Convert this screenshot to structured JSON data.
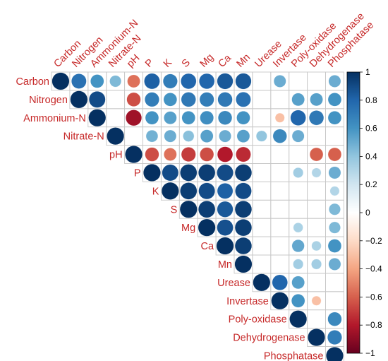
{
  "chart_data": {
    "type": "heatmap",
    "variables": [
      "Carbon",
      "Nitrogen",
      "Ammonium-N",
      "Nitrate-N",
      "pH",
      "P",
      "K",
      "S",
      "Mg",
      "Ca",
      "Mn",
      "Urease",
      "Invertase",
      "Poly-oxidase",
      "Dehydrogenase",
      "Phosphatase"
    ],
    "layout": "upper-triangle",
    "diagonal_labels": true,
    "top_labels_rotated": true,
    "marker": "circle",
    "cells": [
      {
        "r": 0,
        "c": 0,
        "v": 1.0
      },
      {
        "r": 0,
        "c": 1,
        "v": 0.75
      },
      {
        "r": 0,
        "c": 2,
        "v": 0.6
      },
      {
        "r": 0,
        "c": 3,
        "v": 0.45
      },
      {
        "r": 0,
        "c": 4,
        "v": -0.55
      },
      {
        "r": 0,
        "c": 5,
        "v": 0.82
      },
      {
        "r": 0,
        "c": 6,
        "v": 0.7
      },
      {
        "r": 0,
        "c": 7,
        "v": 0.8
      },
      {
        "r": 0,
        "c": 8,
        "v": 0.8
      },
      {
        "r": 0,
        "c": 9,
        "v": 0.85
      },
      {
        "r": 0,
        "c": 10,
        "v": 0.85
      },
      {
        "r": 0,
        "c": 12,
        "v": 0.5
      },
      {
        "r": 0,
        "c": 15,
        "v": 0.5
      },
      {
        "r": 1,
        "c": 1,
        "v": 1.0
      },
      {
        "r": 1,
        "c": 2,
        "v": 0.9
      },
      {
        "r": 1,
        "c": 4,
        "v": -0.65
      },
      {
        "r": 1,
        "c": 5,
        "v": 0.7
      },
      {
        "r": 1,
        "c": 6,
        "v": 0.6
      },
      {
        "r": 1,
        "c": 7,
        "v": 0.72
      },
      {
        "r": 1,
        "c": 8,
        "v": 0.7
      },
      {
        "r": 1,
        "c": 9,
        "v": 0.72
      },
      {
        "r": 1,
        "c": 10,
        "v": 0.75
      },
      {
        "r": 1,
        "c": 13,
        "v": 0.55
      },
      {
        "r": 1,
        "c": 14,
        "v": 0.55
      },
      {
        "r": 1,
        "c": 15,
        "v": 0.6
      },
      {
        "r": 2,
        "c": 2,
        "v": 1.0
      },
      {
        "r": 2,
        "c": 4,
        "v": -0.85
      },
      {
        "r": 2,
        "c": 5,
        "v": 0.6
      },
      {
        "r": 2,
        "c": 6,
        "v": 0.55
      },
      {
        "r": 2,
        "c": 7,
        "v": 0.6
      },
      {
        "r": 2,
        "c": 8,
        "v": 0.62
      },
      {
        "r": 2,
        "c": 9,
        "v": 0.65
      },
      {
        "r": 2,
        "c": 10,
        "v": 0.6
      },
      {
        "r": 2,
        "c": 12,
        "v": -0.3
      },
      {
        "r": 2,
        "c": 13,
        "v": 0.8
      },
      {
        "r": 2,
        "c": 14,
        "v": 0.72
      },
      {
        "r": 2,
        "c": 15,
        "v": 0.6
      },
      {
        "r": 3,
        "c": 3,
        "v": 1.0
      },
      {
        "r": 3,
        "c": 5,
        "v": 0.48
      },
      {
        "r": 3,
        "c": 6,
        "v": 0.5
      },
      {
        "r": 3,
        "c": 7,
        "v": 0.42
      },
      {
        "r": 3,
        "c": 8,
        "v": 0.55
      },
      {
        "r": 3,
        "c": 9,
        "v": 0.5
      },
      {
        "r": 3,
        "c": 10,
        "v": 0.55
      },
      {
        "r": 3,
        "c": 11,
        "v": 0.4
      },
      {
        "r": 3,
        "c": 12,
        "v": 0.65
      },
      {
        "r": 3,
        "c": 13,
        "v": 0.5
      },
      {
        "r": 4,
        "c": 4,
        "v": 1.0
      },
      {
        "r": 4,
        "c": 5,
        "v": -0.65
      },
      {
        "r": 4,
        "c": 6,
        "v": -0.55
      },
      {
        "r": 4,
        "c": 7,
        "v": -0.7
      },
      {
        "r": 4,
        "c": 8,
        "v": -0.65
      },
      {
        "r": 4,
        "c": 9,
        "v": -0.8
      },
      {
        "r": 4,
        "c": 10,
        "v": -0.75
      },
      {
        "r": 4,
        "c": 14,
        "v": -0.6
      },
      {
        "r": 4,
        "c": 15,
        "v": -0.6
      },
      {
        "r": 5,
        "c": 5,
        "v": 1.0
      },
      {
        "r": 5,
        "c": 6,
        "v": 0.9
      },
      {
        "r": 5,
        "c": 7,
        "v": 0.95
      },
      {
        "r": 5,
        "c": 8,
        "v": 0.95
      },
      {
        "r": 5,
        "c": 9,
        "v": 0.9
      },
      {
        "r": 5,
        "c": 10,
        "v": 0.95
      },
      {
        "r": 5,
        "c": 13,
        "v": 0.35
      },
      {
        "r": 5,
        "c": 14,
        "v": 0.3
      },
      {
        "r": 5,
        "c": 15,
        "v": 0.5
      },
      {
        "r": 6,
        "c": 6,
        "v": 1.0
      },
      {
        "r": 6,
        "c": 7,
        "v": 0.95
      },
      {
        "r": 6,
        "c": 8,
        "v": 0.9
      },
      {
        "r": 6,
        "c": 9,
        "v": 0.82
      },
      {
        "r": 6,
        "c": 10,
        "v": 0.9
      },
      {
        "r": 6,
        "c": 15,
        "v": 0.3
      },
      {
        "r": 7,
        "c": 7,
        "v": 1.0
      },
      {
        "r": 7,
        "c": 8,
        "v": 0.95
      },
      {
        "r": 7,
        "c": 9,
        "v": 0.85
      },
      {
        "r": 7,
        "c": 10,
        "v": 0.95
      },
      {
        "r": 7,
        "c": 15,
        "v": 0.45
      },
      {
        "r": 8,
        "c": 8,
        "v": 1.0
      },
      {
        "r": 8,
        "c": 9,
        "v": 0.88
      },
      {
        "r": 8,
        "c": 10,
        "v": 0.95
      },
      {
        "r": 8,
        "c": 13,
        "v": 0.32
      },
      {
        "r": 8,
        "c": 15,
        "v": 0.45
      },
      {
        "r": 9,
        "c": 9,
        "v": 1.0
      },
      {
        "r": 9,
        "c": 10,
        "v": 0.95
      },
      {
        "r": 9,
        "c": 13,
        "v": 0.52
      },
      {
        "r": 9,
        "c": 14,
        "v": 0.32
      },
      {
        "r": 9,
        "c": 15,
        "v": 0.6
      },
      {
        "r": 10,
        "c": 10,
        "v": 1.0
      },
      {
        "r": 10,
        "c": 13,
        "v": 0.35
      },
      {
        "r": 10,
        "c": 14,
        "v": 0.35
      },
      {
        "r": 10,
        "c": 15,
        "v": 0.5
      },
      {
        "r": 11,
        "c": 11,
        "v": 1.0
      },
      {
        "r": 11,
        "c": 12,
        "v": 0.8
      },
      {
        "r": 11,
        "c": 13,
        "v": 0.55
      },
      {
        "r": 12,
        "c": 12,
        "v": 1.0
      },
      {
        "r": 12,
        "c": 13,
        "v": 0.6
      },
      {
        "r": 12,
        "c": 14,
        "v": -0.3
      },
      {
        "r": 13,
        "c": 13,
        "v": 1.0
      },
      {
        "r": 13,
        "c": 15,
        "v": 0.65
      },
      {
        "r": 14,
        "c": 14,
        "v": 1.0
      },
      {
        "r": 14,
        "c": 15,
        "v": 0.7
      },
      {
        "r": 15,
        "c": 15,
        "v": 1.0
      }
    ],
    "color_scale": {
      "min": -1,
      "max": 1,
      "ticks": [
        "1",
        "0.8",
        "0.6",
        "0.4",
        "0.2",
        "0",
        "−0.2",
        "−0.4",
        "−0.6",
        "−0.8",
        "−1"
      ],
      "colors": [
        "#67001f",
        "#b2182b",
        "#d6604d",
        "#f4a582",
        "#fddbc7",
        "#ffffff",
        "#d1e5f0",
        "#92c5de",
        "#4393c3",
        "#2166ac",
        "#053061"
      ]
    },
    "grid": true,
    "legend_placement": "right",
    "label_color": "#c62828"
  }
}
